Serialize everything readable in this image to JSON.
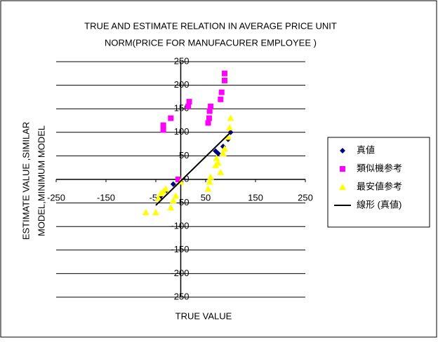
{
  "chart_data": {
    "type": "scatter",
    "title": [
      "TRUE AND ESTIMATE RELATION IN AVERAGE PRICE UNIT",
      "NORM(PRICE FOR MANUFACURER EMPLOYEE )"
    ],
    "x_label": "TRUE VALUE",
    "y_label": [
      "ESTIMATE VALUE ,SIMILAR",
      "MODEL,MINIMUM MODEL"
    ],
    "xlim": [
      -250,
      250
    ],
    "xticks": [
      -250,
      -150,
      -50,
      50,
      150,
      250
    ],
    "ylim": [
      -250,
      250
    ],
    "yticks": [
      -250,
      -200,
      -150,
      -100,
      -50,
      0,
      50,
      100,
      150,
      200,
      250
    ],
    "grid": true,
    "legend": "right",
    "series": [
      {
        "name": "真値",
        "color": "#000080",
        "marker": "diamond",
        "x": [
          -40,
          -30,
          -15,
          0,
          70,
          75,
          85,
          95,
          100
        ],
        "values": [
          -35,
          -25,
          -10,
          -5,
          60,
          55,
          70,
          85,
          100
        ]
      },
      {
        "name": "類似機参考",
        "color": "#ff00ff",
        "marker": "square",
        "x": [
          -35,
          -35,
          -20,
          -5,
          15,
          17,
          55,
          57,
          58,
          60,
          80,
          82,
          88,
          88
        ],
        "values": [
          115,
          105,
          130,
          0,
          155,
          165,
          120,
          130,
          145,
          155,
          170,
          185,
          210,
          225
        ]
      },
      {
        "name": "最安値参考",
        "color": "#ffff00",
        "marker": "triangle",
        "x": [
          -70,
          -50,
          -45,
          -40,
          -35,
          -30,
          -20,
          -15,
          -10,
          0,
          55,
          58,
          60,
          70,
          72,
          75,
          80,
          85,
          88,
          95,
          98,
          100
        ],
        "values": [
          -70,
          -70,
          -40,
          -30,
          -25,
          -20,
          -60,
          -45,
          -35,
          -5,
          -20,
          -5,
          5,
          30,
          45,
          35,
          15,
          55,
          65,
          90,
          110,
          130
        ]
      },
      {
        "name": "線形 (真値)",
        "color": "#000000",
        "marker": "line",
        "x": [
          -50,
          100
        ],
        "values": [
          -55,
          100
        ]
      }
    ]
  }
}
